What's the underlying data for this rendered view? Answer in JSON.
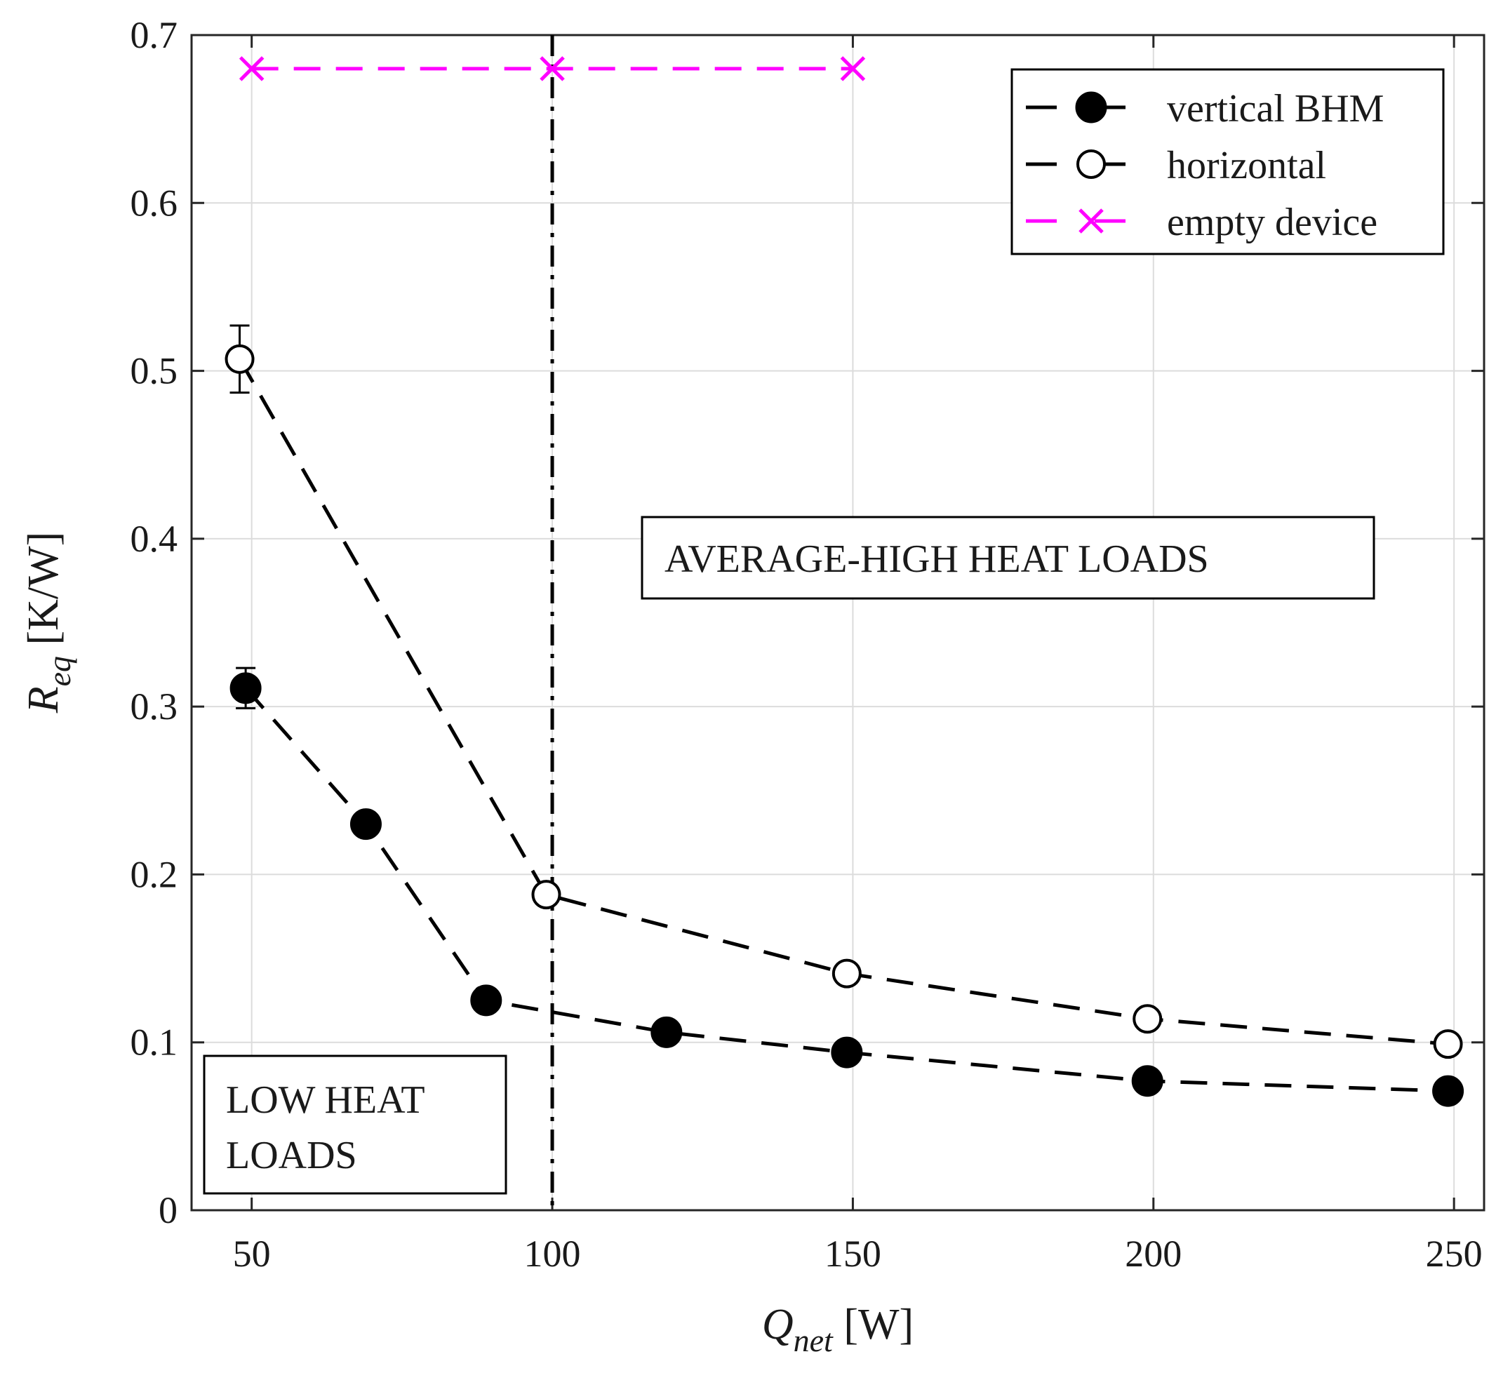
{
  "chart_data": {
    "type": "line",
    "title": "",
    "xlabel": {
      "main": "Q",
      "sub": "net",
      "unit": " [W]"
    },
    "ylabel": {
      "main": "R",
      "sub": "eq",
      "unit": " [K/W]"
    },
    "xlim": [
      40,
      255
    ],
    "ylim": [
      0,
      0.7
    ],
    "x_ticks": [
      50,
      100,
      150,
      200,
      250
    ],
    "x_tick_labels": [
      "50",
      "100",
      "150",
      "200",
      "250"
    ],
    "y_ticks": [
      0,
      0.1,
      0.2,
      0.3,
      0.4,
      0.5,
      0.6,
      0.7
    ],
    "y_tick_labels": [
      "0",
      "0.1",
      "0.2",
      "0.3",
      "0.4",
      "0.5",
      "0.6",
      "0.7"
    ],
    "grid": true,
    "legend_position": "top-right",
    "series": [
      {
        "name": "vertical BHM",
        "marker": "filled-circle",
        "line_style": "dashed",
        "color": "#000000",
        "x": [
          49,
          69,
          89,
          119,
          149,
          199,
          249
        ],
        "y": [
          0.311,
          0.23,
          0.125,
          0.106,
          0.094,
          0.077,
          0.071
        ],
        "error_bars": [
          {
            "index": 0,
            "low": 0.299,
            "high": 0.323
          }
        ]
      },
      {
        "name": "horizontal",
        "marker": "open-circle",
        "line_style": "dashed",
        "color": "#000000",
        "x": [
          48,
          99,
          149,
          199,
          249
        ],
        "y": [
          0.507,
          0.188,
          0.141,
          0.114,
          0.099
        ],
        "error_bars": [
          {
            "index": 0,
            "low": 0.487,
            "high": 0.527
          }
        ]
      },
      {
        "name": "empty device",
        "marker": "cross",
        "line_style": "dashed",
        "color": "#ff00ff",
        "x": [
          50,
          100,
          150
        ],
        "y": [
          0.68,
          0.68,
          0.68
        ]
      }
    ],
    "reference_line": {
      "orientation": "vertical",
      "x": 100,
      "style": "dash-dot",
      "color": "#000000"
    },
    "annotations": [
      {
        "id": "low",
        "lines": [
          "LOW HEAT",
          "LOADS"
        ],
        "anchor": "bottom-left"
      },
      {
        "id": "high",
        "lines": [
          "AVERAGE-HIGH HEAT LOADS"
        ],
        "anchor": "center-right"
      }
    ]
  }
}
